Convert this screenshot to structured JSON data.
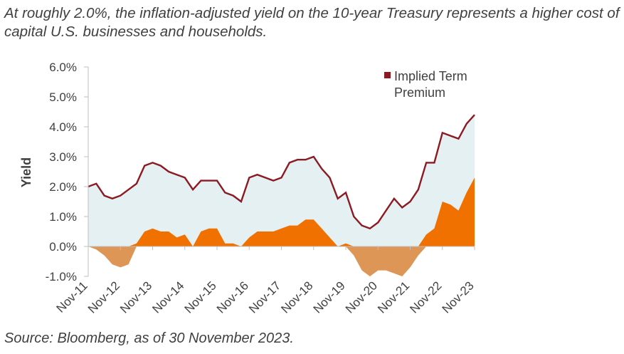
{
  "title": "At roughly 2.0%, the inflation-adjusted yield on the 10-year Treasury represents a higher cost of capital U.S. businesses and households.",
  "source": "Source: Bloomberg, as of 30 November 2023.",
  "colors": {
    "nominal_area": "#e5f0f3",
    "term_premium_line": "#8b1a22",
    "real_yield_positive": "#f07000",
    "real_yield_negative": "#dd9655",
    "axis": "#bfbfbf",
    "text": "#404040"
  },
  "chart_data": {
    "type": "area",
    "title": "",
    "xlabel": "",
    "ylabel": "Yield",
    "ylim": [
      -1.0,
      6.0
    ],
    "yticks": [
      "6.0%",
      "5.0%",
      "4.0%",
      "3.0%",
      "2.0%",
      "1.0%",
      "0.0%",
      "-1.0%"
    ],
    "ytick_values": [
      6.0,
      5.0,
      4.0,
      3.0,
      2.0,
      1.0,
      0.0,
      -1.0
    ],
    "xlim": [
      "Nov-11",
      "Nov-23"
    ],
    "categories": [
      "Nov-11",
      "Nov-12",
      "Nov-13",
      "Nov-14",
      "Nov-15",
      "Nov-16",
      "Nov-17",
      "Nov-18",
      "Nov-19",
      "Nov-20",
      "Nov-21",
      "Nov-22",
      "Nov-23"
    ],
    "legend": {
      "position": "top-right",
      "entries": [
        "Implied Term Premium"
      ]
    },
    "x": [
      "Nov-11",
      "Feb-12",
      "May-12",
      "Aug-12",
      "Nov-12",
      "Feb-13",
      "May-13",
      "Aug-13",
      "Nov-13",
      "Feb-14",
      "May-14",
      "Aug-14",
      "Nov-14",
      "Feb-15",
      "May-15",
      "Aug-15",
      "Nov-15",
      "Feb-16",
      "May-16",
      "Aug-16",
      "Nov-16",
      "Feb-17",
      "May-17",
      "Aug-17",
      "Nov-17",
      "Feb-18",
      "May-18",
      "Aug-18",
      "Nov-18",
      "Feb-19",
      "May-19",
      "Aug-19",
      "Nov-19",
      "Feb-20",
      "May-20",
      "Aug-20",
      "Nov-20",
      "Feb-21",
      "May-21",
      "Aug-21",
      "Nov-21",
      "Feb-22",
      "May-22",
      "Aug-22",
      "Nov-22",
      "Feb-23",
      "May-23",
      "Aug-23",
      "Nov-23"
    ],
    "series": [
      {
        "name": "Implied Term Premium",
        "values": [
          2.0,
          2.1,
          1.7,
          1.6,
          1.7,
          1.9,
          2.1,
          2.7,
          2.8,
          2.7,
          2.5,
          2.4,
          2.3,
          1.9,
          2.2,
          2.2,
          2.2,
          1.8,
          1.7,
          1.5,
          2.3,
          2.4,
          2.3,
          2.2,
          2.3,
          2.8,
          2.9,
          2.9,
          3.0,
          2.6,
          2.3,
          1.6,
          1.8,
          1.0,
          0.7,
          0.6,
          0.8,
          1.2,
          1.6,
          1.3,
          1.5,
          1.9,
          2.8,
          2.8,
          3.8,
          3.7,
          3.6,
          4.1,
          4.4
        ]
      },
      {
        "name": "",
        "values": [
          0.0,
          -0.1,
          -0.3,
          -0.6,
          -0.7,
          -0.6,
          0.1,
          0.5,
          0.6,
          0.5,
          0.5,
          0.3,
          0.4,
          0.0,
          0.5,
          0.6,
          0.6,
          0.1,
          0.1,
          0.0,
          0.3,
          0.5,
          0.5,
          0.5,
          0.6,
          0.7,
          0.7,
          0.9,
          0.9,
          0.6,
          0.3,
          0.0,
          0.1,
          -0.3,
          -0.8,
          -1.0,
          -0.8,
          -0.8,
          -0.9,
          -1.0,
          -0.7,
          -0.3,
          0.4,
          0.6,
          1.5,
          1.4,
          1.2,
          1.8,
          2.3
        ]
      }
    ]
  }
}
